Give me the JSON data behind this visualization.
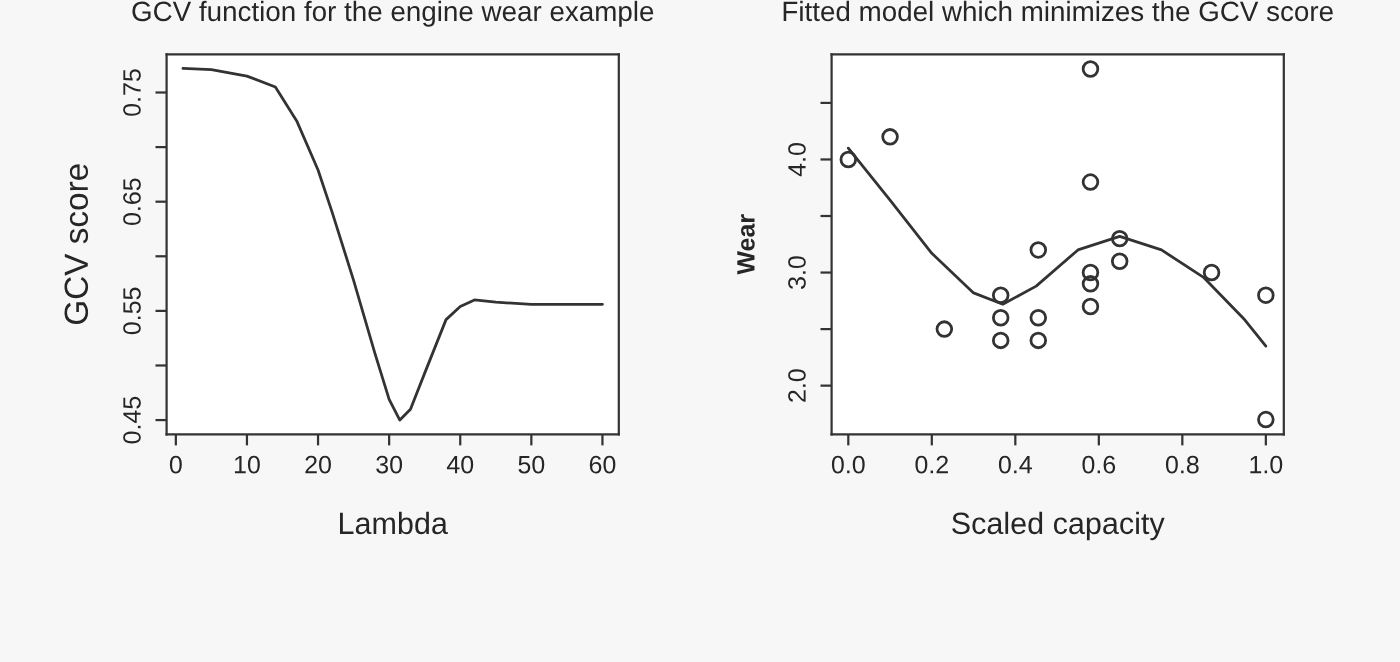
{
  "chart_data": [
    {
      "type": "line",
      "title": "GCV function for the engine wear example",
      "xlabel": "Lambda",
      "ylabel": "GCV score",
      "x": [
        1,
        5,
        10,
        14,
        17,
        20,
        22,
        25,
        28,
        30,
        31.5,
        33,
        35,
        38,
        40,
        42,
        45,
        50,
        55,
        60
      ],
      "values": [
        0.772,
        0.771,
        0.765,
        0.755,
        0.724,
        0.679,
        0.64,
        0.578,
        0.511,
        0.469,
        0.45,
        0.46,
        0.493,
        0.542,
        0.554,
        0.56,
        0.558,
        0.556,
        0.556,
        0.556
      ],
      "color": "#333333",
      "marker": "none",
      "line_style": "solid",
      "grid": false,
      "legend": false,
      "xlim": [
        -1.3,
        62.3
      ],
      "xticks": [
        0,
        10,
        20,
        30,
        40,
        50,
        60
      ],
      "ylim": [
        0.437,
        0.785
      ],
      "yticks": [
        0.45,
        {
          "value": 0.5,
          "label": null
        },
        0.55,
        {
          "value": 0.6,
          "label": null
        },
        0.65,
        {
          "value": 0.7,
          "label": null
        },
        0.75
      ]
    },
    {
      "type": "scatter",
      "title": "Fitted model which minimizes the GCV score",
      "xlabel": "Scaled capacity",
      "ylabel": "Wear",
      "grid": false,
      "legend": false,
      "xlim": [
        -0.04,
        1.043
      ],
      "xticks": [
        {
          "value": 0,
          "label": "0.0"
        },
        0.2,
        0.4,
        0.6,
        0.8,
        {
          "value": 1,
          "label": "1.0"
        }
      ],
      "ylim": [
        1.57,
        4.93
      ],
      "yticks": [
        {
          "value": 2,
          "label": "2.0"
        },
        {
          "value": 2.5,
          "label": null
        },
        {
          "value": 3,
          "label": "3.0"
        },
        {
          "value": 3.5,
          "label": null
        },
        {
          "value": 4,
          "label": "4.0"
        },
        {
          "value": 4.5,
          "label": null
        }
      ],
      "series": [
        {
          "type": "scatter",
          "color": "#333333",
          "marker": "circle",
          "x": [
            0,
            0.1,
            0.23,
            0.365,
            0.365,
            0.365,
            0.455,
            0.455,
            0.455,
            0.58,
            0.58,
            0.58,
            0.58,
            0.58,
            0.65,
            0.65,
            0.87,
            1.0,
            1.0
          ],
          "values": [
            4.0,
            4.2,
            2.5,
            2.8,
            2.6,
            2.4,
            3.2,
            2.6,
            2.4,
            4.8,
            3.8,
            3.0,
            2.9,
            2.7,
            3.3,
            3.1,
            3.0,
            2.8,
            1.7
          ]
        },
        {
          "type": "line",
          "color": "#333333",
          "marker": "none",
          "line_style": "solid",
          "x": [
            0,
            0.1,
            0.2,
            0.3,
            0.37,
            0.45,
            0.55,
            0.65,
            0.75,
            0.85,
            0.95,
            1.0
          ],
          "values": [
            4.1,
            3.64,
            3.17,
            2.82,
            2.72,
            2.88,
            3.2,
            3.32,
            3.2,
            2.96,
            2.58,
            2.35
          ]
        }
      ]
    }
  ]
}
